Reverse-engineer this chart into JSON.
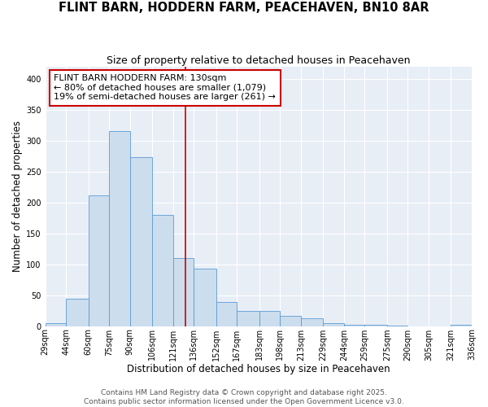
{
  "title": "FLINT BARN, HODDERN FARM, PEACEHAVEN, BN10 8AR",
  "subtitle": "Size of property relative to detached houses in Peacehaven",
  "xlabel": "Distribution of detached houses by size in Peacehaven",
  "ylabel": "Number of detached properties",
  "bins": [
    29,
    44,
    60,
    75,
    90,
    106,
    121,
    136,
    152,
    167,
    183,
    198,
    213,
    229,
    244,
    259,
    275,
    290,
    305,
    321,
    336
  ],
  "values": [
    5,
    44,
    211,
    315,
    274,
    180,
    110,
    93,
    39,
    25,
    24,
    16,
    13,
    5,
    2,
    2,
    1,
    0,
    0,
    2
  ],
  "bar_color": "#ccdded",
  "bar_edge_color": "#5b9bd5",
  "bg_color": "#e8eef6",
  "grid_color": "#ffffff",
  "vline_x": 130,
  "vline_color": "#cc0000",
  "annotation_title": "FLINT BARN HODDERN FARM: 130sqm",
  "annotation_line1": "← 80% of detached houses are smaller (1,079)",
  "annotation_line2": "19% of semi-detached houses are larger (261) →",
  "annotation_box_color": "#ffffff",
  "annotation_box_edge": "#cc0000",
  "ylim": [
    0,
    420
  ],
  "yticks": [
    0,
    50,
    100,
    150,
    200,
    250,
    300,
    350,
    400
  ],
  "footer1": "Contains HM Land Registry data © Crown copyright and database right 2025.",
  "footer2": "Contains public sector information licensed under the Open Government Licence v3.0.",
  "title_fontsize": 10.5,
  "subtitle_fontsize": 9,
  "axis_label_fontsize": 8.5,
  "tick_fontsize": 7,
  "annotation_fontsize": 8,
  "footer_fontsize": 6.5
}
